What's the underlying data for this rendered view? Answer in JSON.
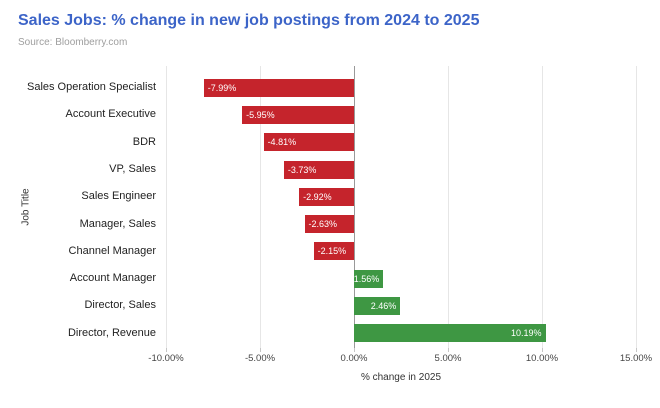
{
  "header": {
    "title": "Sales Jobs: % change in new job postings from 2024 to 2025",
    "source": "Source: Bloomberry.com"
  },
  "chart_data": {
    "type": "bar",
    "orientation": "horizontal",
    "title": "Sales Jobs: % change in new job postings from 2024 to 2025",
    "xlabel": "% change in 2025",
    "ylabel": "Job Title",
    "categories": [
      "Sales Operation Specialist",
      "Account Executive",
      "BDR",
      "VP, Sales",
      "Sales Engineer",
      "Manager, Sales",
      "Channel Manager",
      "Account Manager",
      "Director, Sales",
      "Director, Revenue"
    ],
    "values": [
      -7.99,
      -5.95,
      -4.81,
      -3.73,
      -2.92,
      -2.63,
      -2.15,
      1.56,
      2.46,
      10.19
    ],
    "bar_labels": [
      "-7.99%",
      "-5.95%",
      "-4.81%",
      "-3.73%",
      "-2.92%",
      "-2.63%",
      "-2.15%",
      "1.56%",
      "2.46%",
      "10.19%"
    ],
    "xlim": [
      -10,
      15
    ],
    "x_ticks": [
      -10,
      -5,
      0,
      5,
      10,
      15
    ],
    "x_tick_labels": [
      "-10.00%",
      "-5.00%",
      "0.00%",
      "5.00%",
      "10.00%",
      "15.00%"
    ],
    "grid": true,
    "legend": false
  },
  "colors": {
    "title": "#3c64c8",
    "source": "#9e9e9e",
    "negative_bar": "#c5242c",
    "positive_bar": "#3e9743",
    "gridline": "#e6e6e6",
    "zero_line": "#999999",
    "tick_mark": "#c6c6c6"
  }
}
